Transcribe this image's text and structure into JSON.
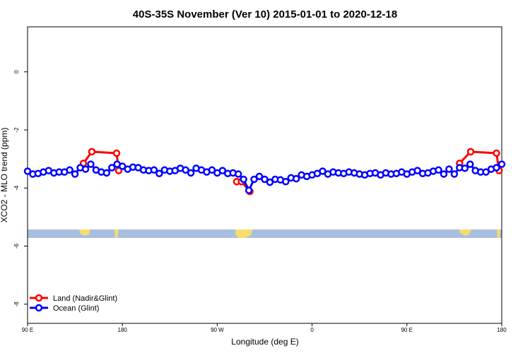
{
  "chart_data": {
    "type": "line",
    "title": "40S-35S November (Ver 10)   2015-01-01 to 2020-12-18",
    "x_label": "Longitude (deg E)",
    "y_label": "XCO2 - MLO trend (ppm)",
    "xlim": [
      90,
      540
    ],
    "ylim": [
      -8.66,
      1.55
    ],
    "xticks": [
      {
        "value": 90,
        "label": "90 E"
      },
      180,
      {
        "value": 270,
        "label": "90 W"
      },
      {
        "value": 360,
        "label": "0"
      },
      {
        "value": 450,
        "label": "90 E"
      },
      {
        "value": 540,
        "label": "180"
      }
    ],
    "yticks": [
      -8,
      -6,
      -4,
      -2,
      0
    ],
    "legend": "bottom-left",
    "series": [
      {
        "name": "Land (Nadir&Glint)",
        "color": "#ff0000",
        "x": [
          143,
          151,
          174.5,
          176.5,
          230,
          288.5,
          293,
          301,
          400,
          500,
          510.5,
          535,
          537.5
        ],
        "values": [
          -3.15,
          -2.75,
          -2.8,
          -3.4,
          null,
          -3.78,
          -3.78,
          -4.12,
          null,
          -3.15,
          -2.75,
          -2.8,
          -3.4
        ]
      },
      {
        "name": "Ocean (Glint)",
        "color": "#0000ff",
        "x": [
          90,
          95,
          100,
          105,
          110,
          115,
          120,
          125,
          130,
          135,
          140,
          145,
          150,
          155,
          160,
          165,
          170,
          175,
          180,
          185,
          190,
          195,
          200,
          205,
          210,
          215,
          220,
          225,
          230,
          235,
          240,
          245,
          250,
          255,
          260,
          265,
          270,
          275,
          280,
          285,
          290,
          295,
          300,
          305,
          310,
          315,
          320,
          325,
          330,
          335,
          340,
          345,
          350,
          355,
          360,
          365,
          370,
          375,
          380,
          385,
          390,
          395,
          400,
          405,
          410,
          415,
          420,
          425,
          430,
          435,
          440,
          445,
          450,
          455,
          460,
          465,
          470,
          475,
          480,
          485,
          490,
          495,
          500,
          505,
          510,
          515,
          520,
          525,
          530,
          535,
          540
        ],
        "values": [
          -3.42,
          -3.52,
          -3.5,
          -3.45,
          -3.4,
          -3.48,
          -3.45,
          -3.45,
          -3.38,
          -3.52,
          -3.3,
          -3.35,
          -3.18,
          -3.38,
          -3.45,
          -3.48,
          -3.3,
          -3.18,
          -3.25,
          -3.35,
          -3.28,
          -3.3,
          -3.38,
          -3.4,
          -3.38,
          -3.5,
          -3.38,
          -3.42,
          -3.4,
          -3.32,
          -3.38,
          -3.48,
          -3.32,
          -3.38,
          -3.45,
          -3.38,
          -3.48,
          -3.4,
          -3.5,
          -3.48,
          -3.52,
          -3.7,
          -4.08,
          -3.7,
          -3.6,
          -3.7,
          -3.8,
          -3.7,
          -3.72,
          -3.78,
          -3.65,
          -3.68,
          -3.55,
          -3.6,
          -3.55,
          -3.5,
          -3.42,
          -3.52,
          -3.45,
          -3.48,
          -3.5,
          -3.45,
          -3.48,
          -3.52,
          -3.55,
          -3.5,
          -3.48,
          -3.55,
          -3.48,
          -3.52,
          -3.5,
          -3.45,
          -3.52,
          -3.45,
          -3.4,
          -3.5,
          -3.48,
          -3.42,
          -3.38,
          -3.52,
          -3.35,
          -3.52,
          -3.3,
          -3.32,
          -3.18,
          -3.4,
          -3.45,
          -3.45,
          -3.35,
          -3.3,
          -3.18
        ]
      }
    ]
  }
}
